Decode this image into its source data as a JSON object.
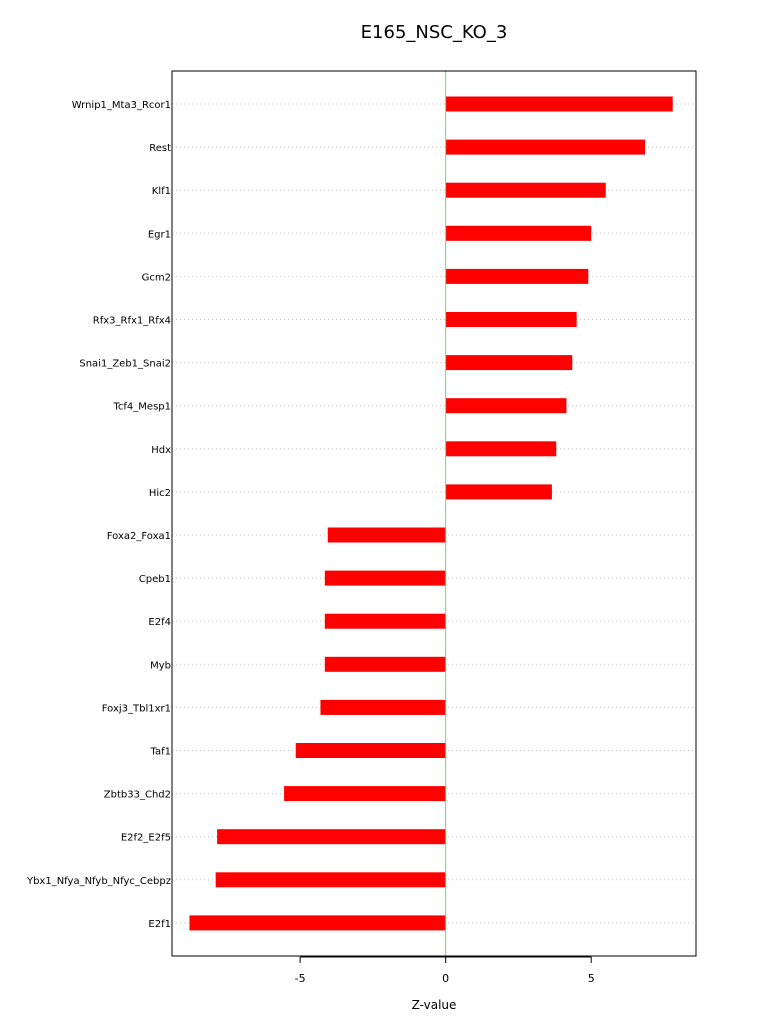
{
  "chart_data": {
    "type": "bar",
    "orientation": "horizontal",
    "title": "E165_NSC_KO_3",
    "xlabel": "Z-value",
    "ylabel": "",
    "xlim": [
      -9.4,
      8.6
    ],
    "xticks": [
      -5,
      0,
      5
    ],
    "grid": "horizontal dotted",
    "categories": [
      "Wrnip1_Mta3_Rcor1",
      "Rest",
      "Klf1",
      "Egr1",
      "Gcm2",
      "Rfx3_Rfx1_Rfx4",
      "Snai1_Zeb1_Snai2",
      "Tcf4_Mesp1",
      "Hdx",
      "Hic2",
      "Foxa2_Foxa1",
      "Cpeb1",
      "E2f4",
      "Myb",
      "Foxj3_Tbl1xr1",
      "Taf1",
      "Zbtb33_Chd2",
      "E2f2_E2f5",
      "Ybx1_Nfya_Nfyb_Nfyc_Cebpz",
      "E2f1"
    ],
    "values": [
      7.8,
      6.85,
      5.5,
      5.0,
      4.9,
      4.5,
      4.35,
      4.15,
      3.8,
      3.65,
      -4.05,
      -4.15,
      -4.15,
      -4.15,
      -4.3,
      -5.15,
      -5.55,
      -7.85,
      -7.9,
      -8.8
    ],
    "colors": {
      "bar": "#ff0000",
      "zero_line": "#66dd66",
      "grid": "#c8c8c8",
      "axis": "#000000"
    }
  }
}
